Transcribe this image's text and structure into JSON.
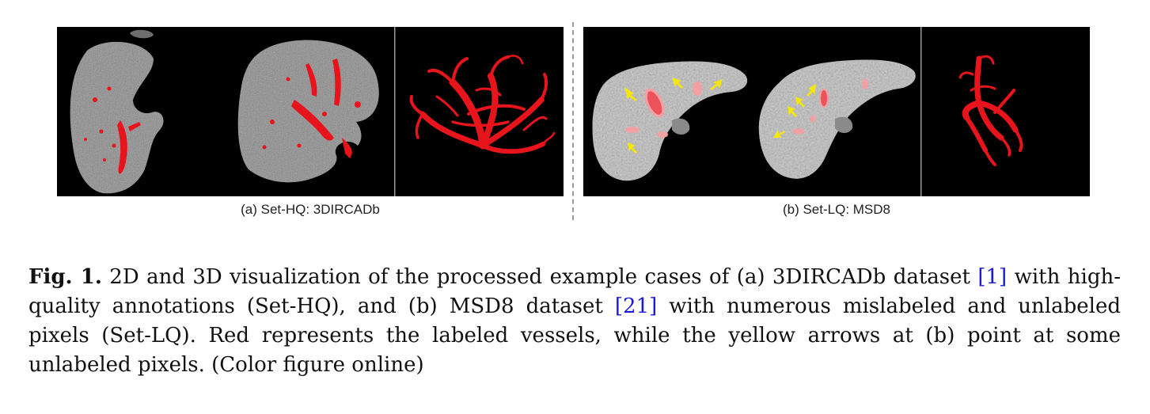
{
  "figure": {
    "panel_a": {
      "name": "3DIRCADb",
      "subcaption": "(a) Set-HQ: 3DIRCADb",
      "views": [
        "2D slice",
        "2D slice",
        "3D vessel rendering"
      ]
    },
    "panel_b": {
      "name": "MSD8",
      "subcaption": "(b) Set-LQ: MSD8",
      "views": [
        "2D slice",
        "2D slice",
        "3D vessel rendering"
      ]
    },
    "colors": {
      "vessel_label": "#e8141c",
      "arrow": "#f5e60a",
      "background": "#000000"
    }
  },
  "caption": {
    "label": "Fig. 1.",
    "text_1": " 2D and 3D visualization of the processed example cases of (a) 3DIRCADb dataset ",
    "cite_1": "[1]",
    "text_2": " with high-quality annotations (Set-HQ), and (b) MSD8 dataset ",
    "cite_2": "[21]",
    "text_3": " with numerous mislabeled and unlabeled pixels (Set-LQ). Red represents the labeled vessels, while the yellow arrows at (b) point at some unlabeled pixels. (Color figure online)"
  }
}
